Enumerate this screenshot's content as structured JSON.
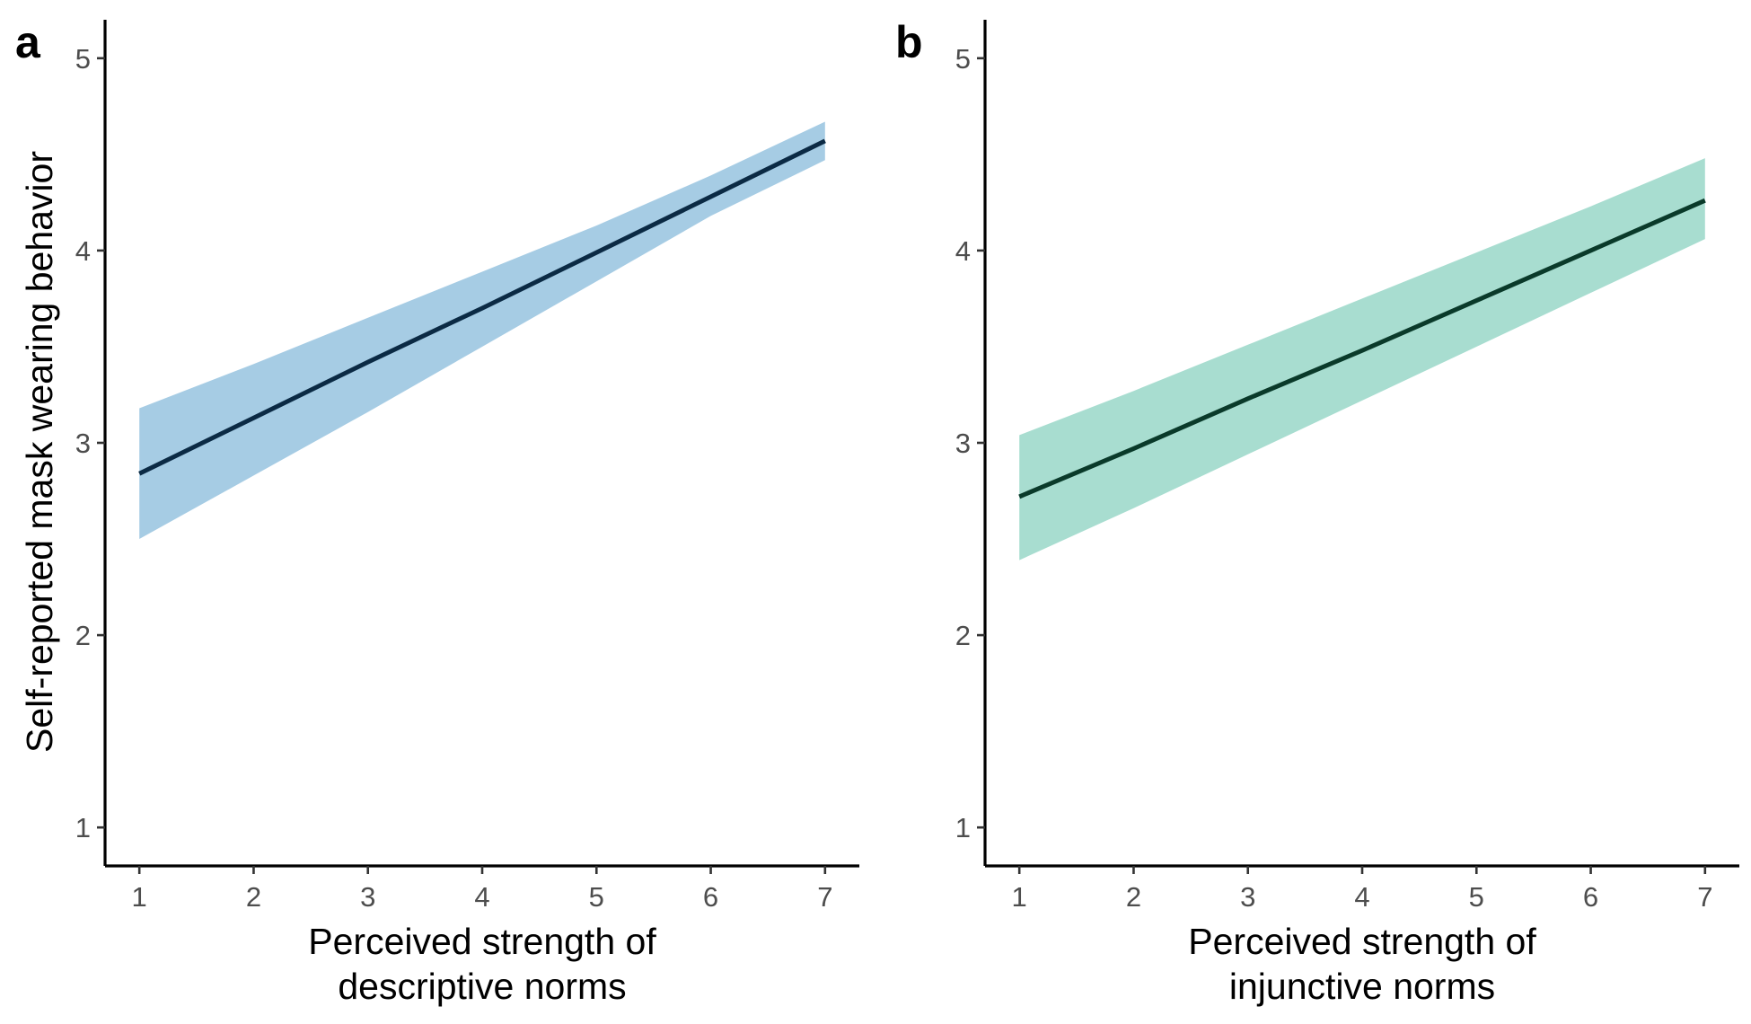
{
  "chart_data": [
    {
      "type": "line",
      "panel_label": "a",
      "xlabel": [
        "Perceived strength of",
        "descriptive norms"
      ],
      "ylabel": "Self-reported mask wearing behavior",
      "xlim": [
        0.7,
        7.3
      ],
      "ylim": [
        0.8,
        5.2
      ],
      "x_ticks": [
        1,
        2,
        3,
        4,
        5,
        6,
        7
      ],
      "y_ticks": [
        1,
        2,
        3,
        4,
        5
      ],
      "grid": false,
      "line_color": "#0b2a44",
      "band_color": "#a6cce4",
      "series": [
        {
          "x": [
            1,
            2,
            3,
            4,
            5,
            6,
            7
          ],
          "y": [
            2.84,
            3.13,
            3.42,
            3.7,
            3.99,
            4.28,
            4.57
          ],
          "lower": [
            2.5,
            2.83,
            3.16,
            3.5,
            3.84,
            4.18,
            4.47
          ],
          "upper": [
            3.18,
            3.41,
            3.65,
            3.89,
            4.13,
            4.39,
            4.67
          ]
        }
      ]
    },
    {
      "type": "line",
      "panel_label": "b",
      "xlabel": [
        "Perceived strength of",
        "injunctive norms"
      ],
      "ylabel": "",
      "xlim": [
        0.7,
        7.3
      ],
      "ylim": [
        0.8,
        5.2
      ],
      "x_ticks": [
        1,
        2,
        3,
        4,
        5,
        6,
        7
      ],
      "y_ticks": [
        1,
        2,
        3,
        4,
        5
      ],
      "grid": false,
      "line_color": "#0a3a2a",
      "band_color": "#a8ddd0",
      "series": [
        {
          "x": [
            1,
            2,
            3,
            4,
            5,
            6,
            7
          ],
          "y": [
            2.72,
            2.97,
            3.23,
            3.48,
            3.74,
            4.0,
            4.26
          ],
          "lower": [
            2.39,
            2.66,
            2.94,
            3.22,
            3.5,
            3.78,
            4.06
          ],
          "upper": [
            3.04,
            3.27,
            3.51,
            3.75,
            3.99,
            4.23,
            4.48
          ]
        }
      ]
    }
  ]
}
